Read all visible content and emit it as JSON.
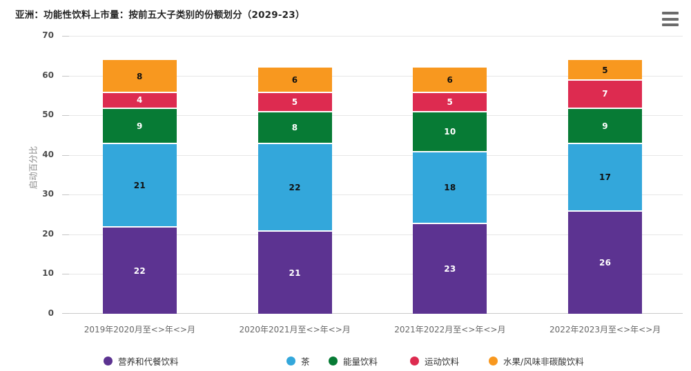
{
  "header": {
    "title": "亚洲：功能性饮料上市量：按前五大子类别的份额划分（2029-23）",
    "menu_icon": "hamburger"
  },
  "colors": {
    "background": "#ffffff",
    "gridline": "#e6e6e6",
    "baseline": "#c9c9c9",
    "title_text": "#262626",
    "axis_text": "#4d4d4d",
    "xlabel_text": "#666666",
    "ylabel_text": "#8c8c8c",
    "legend_text": "#333333",
    "menu_icon": "#6b6b6b"
  },
  "chart_data": {
    "type": "bar",
    "stacked": true,
    "title": "亚洲：功能性饮料上市量：按前五大子类别的份额划分（2029-23）",
    "xlabel": "",
    "ylabel": "启动百分比",
    "ylim": [
      0,
      70
    ],
    "yticks": [
      0,
      10,
      20,
      30,
      40,
      50,
      60,
      70
    ],
    "grid": true,
    "legend_position": "bottom",
    "categories": [
      "2019年2020月至<>年<>月",
      "2020年2021月至<>年<>月",
      "2021年2022月至<>年<>月",
      "2022年2023月至<>年<>月"
    ],
    "series": [
      {
        "name": "营养和代餐饮料",
        "color": "#5C3391",
        "label_color": "#ffffff",
        "values": [
          22,
          21,
          23,
          26
        ]
      },
      {
        "name": "茶",
        "color": "#33A7DB",
        "label_color": "#111111",
        "values": [
          21,
          22,
          18,
          17
        ]
      },
      {
        "name": "能量饮料",
        "color": "#077B35",
        "label_color": "#ffffff",
        "values": [
          9,
          8,
          10,
          9
        ]
      },
      {
        "name": "运动饮料",
        "color": "#DD2B50",
        "label_color": "#ffffff",
        "values": [
          4,
          5,
          5,
          7
        ]
      },
      {
        "name": "水果/风味非碳酸饮料",
        "color": "#F8981F",
        "label_color": "#111111",
        "values": [
          8,
          6,
          6,
          5
        ]
      }
    ],
    "stack_totals": [
      64,
      62,
      62,
      64
    ]
  }
}
